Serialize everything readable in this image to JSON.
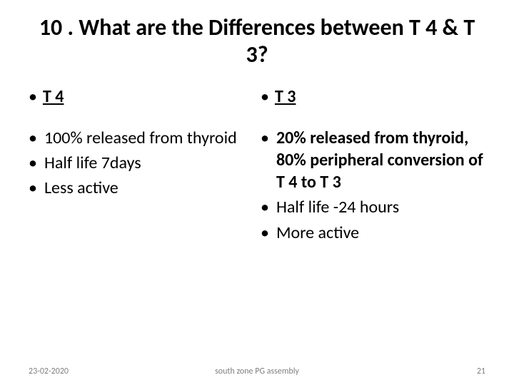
{
  "title": "10 . What are the Differences between T 4 & T 3?",
  "left": {
    "heading": "T 4",
    "points": [
      {
        "text": "100% released from thyroid",
        "bold": false
      },
      {
        "text": "Half life 7days",
        "bold": false
      },
      {
        "text": "Less active",
        "bold": false
      }
    ]
  },
  "right": {
    "heading": "T 3",
    "points": [
      {
        "text": "20% released from thyroid,  80% peripheral conversion of T 4 to T 3",
        "bold": true
      },
      {
        "text": "Half life -24 hours",
        "bold": false
      },
      {
        "text": "More active",
        "bold": false
      }
    ]
  },
  "footer": {
    "date": "23-02-2020",
    "center": "south zone PG assembly",
    "page": "21"
  },
  "style": {
    "background": "#ffffff",
    "text_color": "#000000",
    "footer_color": "#808080",
    "title_fontsize": 32,
    "body_fontsize": 24,
    "footer_fontsize": 12
  }
}
